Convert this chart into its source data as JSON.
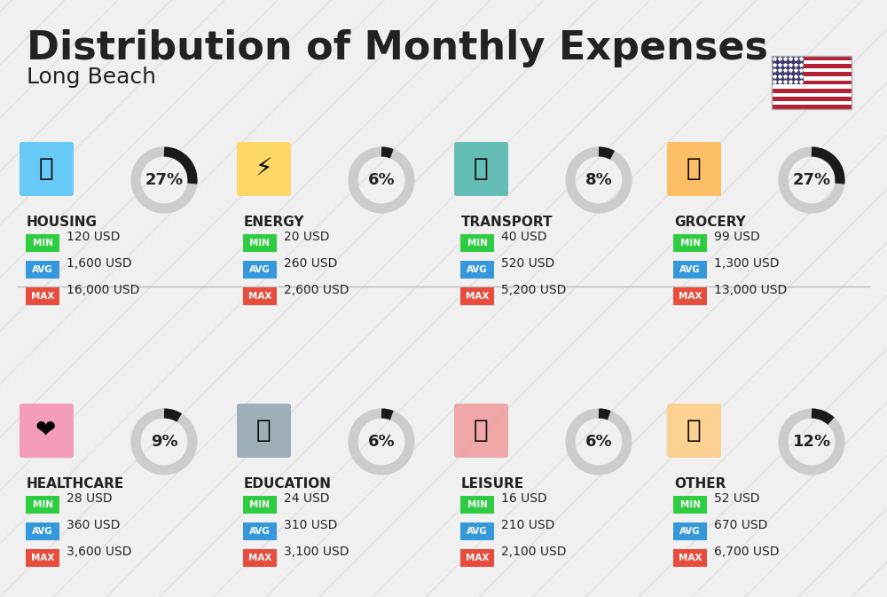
{
  "title": "Distribution of Monthly Expenses",
  "subtitle": "Long Beach",
  "background_color": "#f0f0f0",
  "categories": [
    {
      "name": "HOUSING",
      "pct": 27,
      "min_val": "120 USD",
      "avg_val": "1,600 USD",
      "max_val": "16,000 USD",
      "row": 0,
      "col": 0
    },
    {
      "name": "ENERGY",
      "pct": 6,
      "min_val": "20 USD",
      "avg_val": "260 USD",
      "max_val": "2,600 USD",
      "row": 0,
      "col": 1
    },
    {
      "name": "TRANSPORT",
      "pct": 8,
      "min_val": "40 USD",
      "avg_val": "520 USD",
      "max_val": "5,200 USD",
      "row": 0,
      "col": 2
    },
    {
      "name": "GROCERY",
      "pct": 27,
      "min_val": "99 USD",
      "avg_val": "1,300 USD",
      "max_val": "13,000 USD",
      "row": 0,
      "col": 3
    },
    {
      "name": "HEALTHCARE",
      "pct": 9,
      "min_val": "28 USD",
      "avg_val": "360 USD",
      "max_val": "3,600 USD",
      "row": 1,
      "col": 0
    },
    {
      "name": "EDUCATION",
      "pct": 6,
      "min_val": "24 USD",
      "avg_val": "310 USD",
      "max_val": "3,100 USD",
      "row": 1,
      "col": 1
    },
    {
      "name": "LEISURE",
      "pct": 6,
      "min_val": "16 USD",
      "avg_val": "210 USD",
      "max_val": "2,100 USD",
      "row": 1,
      "col": 2
    },
    {
      "name": "OTHER",
      "pct": 12,
      "min_val": "52 USD",
      "avg_val": "670 USD",
      "max_val": "6,700 USD",
      "row": 1,
      "col": 3
    }
  ],
  "min_color": "#2ecc40",
  "avg_color": "#3498db",
  "max_color": "#e74c3c",
  "label_color": "#ffffff",
  "text_color": "#222222",
  "arc_color": "#333333",
  "arc_bg_color": "#cccccc"
}
